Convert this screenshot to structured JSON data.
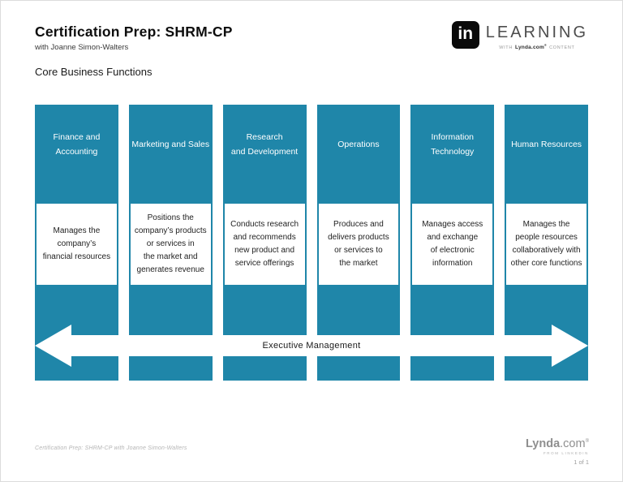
{
  "colors": {
    "teal": "#1F86A9"
  },
  "header": {
    "title": "Certification Prep: SHRM-CP",
    "subtitle": "with Joanne Simon-Walters",
    "slide_heading": "Core Business Functions"
  },
  "brand_logo": {
    "in_badge": "in",
    "learning": "LEARNING",
    "tagline_prefix": "WITH",
    "tagline_brand": "Lynda.com",
    "tagline_reg": "®",
    "tagline_suffix": "CONTENT"
  },
  "columns": [
    {
      "header": "Finance and\nAccounting",
      "description": "Manages the\ncompany’s\nfinancial resources"
    },
    {
      "header": "Marketing and Sales",
      "description": "Positions the\ncompany’s products\nor services in\nthe market and\ngenerates revenue"
    },
    {
      "header": "Research\nand Development",
      "description": "Conducts research\nand recommends\nnew product and\nservice offerings"
    },
    {
      "header": "Operations",
      "description": "Produces and\ndelivers products\nor services to\nthe market"
    },
    {
      "header": "Information\nTechnology",
      "description": "Manages access\nand exchange\nof electronic\ninformation"
    },
    {
      "header": "Human Resources",
      "description": "Manages the\npeople resources\ncollaboratively with\nother core functions"
    }
  ],
  "arrow": {
    "label": "Executive Management"
  },
  "footer": {
    "course_credit": "Certification Prep: SHRM-CP with Joanne Simon-Walters",
    "brand_bold": "Lynda",
    "brand_light": ".com",
    "brand_reg": "®",
    "brand_sub": "FROM LINKEDIN",
    "page_indicator": "1 of 1"
  }
}
